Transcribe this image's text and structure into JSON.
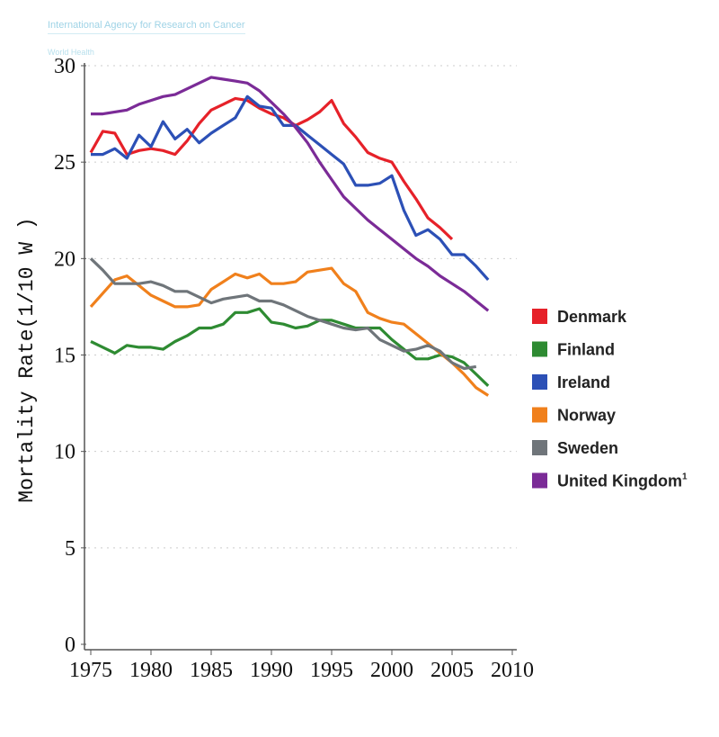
{
  "header": {
    "org": "International Agency for Research on Cancer",
    "sub": "World Health"
  },
  "chart_data": {
    "type": "line",
    "title": "",
    "xlabel": "",
    "ylabel": "Mortality Rate(1/10 W )",
    "xlim": [
      1975,
      2010
    ],
    "ylim": [
      0,
      30
    ],
    "xticks": [
      "1975",
      "1980",
      "1985",
      "1990",
      "1995",
      "2000",
      "2005",
      "2010"
    ],
    "yticks": [
      "0",
      "5",
      "10",
      "15",
      "20",
      "25",
      "30"
    ],
    "grid": "horizontal dotted",
    "legend_position": "right",
    "series": [
      {
        "name": "Denmark",
        "color": "#e62129",
        "start": 1975,
        "values": [
          25.5,
          26.6,
          26.5,
          25.4,
          25.6,
          25.7,
          25.6,
          25.4,
          26.1,
          27.0,
          27.7,
          28.0,
          28.3,
          28.2,
          27.8,
          27.5,
          27.3,
          26.9,
          27.2,
          27.6,
          28.2,
          27.0,
          26.3,
          25.5,
          25.2,
          25.0,
          24.0,
          23.1,
          22.1,
          21.6,
          21.0
        ]
      },
      {
        "name": "Finland",
        "color": "#2e8b32",
        "start": 1975,
        "values": [
          15.7,
          15.4,
          15.1,
          15.5,
          15.4,
          15.4,
          15.3,
          15.7,
          16.0,
          16.4,
          16.4,
          16.6,
          17.2,
          17.2,
          17.4,
          16.7,
          16.6,
          16.4,
          16.5,
          16.8,
          16.8,
          16.6,
          16.4,
          16.4,
          16.4,
          15.8,
          15.3,
          14.8,
          14.8,
          15.0,
          14.9,
          14.6,
          14.0,
          13.4
        ]
      },
      {
        "name": "Ireland",
        "color": "#2c50b6",
        "start": 1975,
        "values": [
          25.4,
          25.4,
          25.7,
          25.2,
          26.4,
          25.8,
          27.1,
          26.2,
          26.7,
          26.0,
          26.5,
          26.9,
          27.3,
          28.4,
          27.9,
          27.8,
          26.9,
          26.9,
          26.4,
          25.9,
          25.4,
          24.9,
          23.8,
          23.8,
          23.9,
          24.3,
          22.5,
          21.2,
          21.5,
          21.0,
          20.2,
          20.2,
          19.6,
          18.9
        ]
      },
      {
        "name": "Norway",
        "color": "#f0801c",
        "start": 1975,
        "values": [
          17.5,
          18.2,
          18.9,
          19.1,
          18.6,
          18.1,
          17.8,
          17.5,
          17.5,
          17.6,
          18.4,
          18.8,
          19.2,
          19.0,
          19.2,
          18.7,
          18.7,
          18.8,
          19.3,
          19.4,
          19.5,
          18.7,
          18.3,
          17.2,
          16.9,
          16.7,
          16.6,
          16.1,
          15.6,
          15.1,
          14.6,
          14.0,
          13.3,
          12.9
        ]
      },
      {
        "name": "Sweden",
        "color": "#6f757a",
        "start": 1975,
        "values": [
          20.0,
          19.4,
          18.7,
          18.7,
          18.7,
          18.8,
          18.6,
          18.3,
          18.3,
          18.0,
          17.7,
          17.9,
          18.0,
          18.1,
          17.8,
          17.8,
          17.6,
          17.3,
          17.0,
          16.8,
          16.6,
          16.4,
          16.3,
          16.4,
          15.8,
          15.5,
          15.2,
          15.3,
          15.5,
          15.2,
          14.6,
          14.3,
          14.4
        ]
      },
      {
        "name": "United Kingdom",
        "footnote": "1",
        "color": "#7b2b97",
        "start": 1975,
        "values": [
          27.5,
          27.5,
          27.6,
          27.7,
          28.0,
          28.2,
          28.4,
          28.5,
          28.8,
          29.1,
          29.4,
          29.3,
          29.2,
          29.1,
          28.7,
          28.1,
          27.5,
          26.8,
          26.0,
          25.0,
          24.1,
          23.2,
          22.6,
          22.0,
          21.5,
          21.0,
          20.5,
          20.0,
          19.6,
          19.1,
          18.7,
          18.3,
          17.8,
          17.3
        ]
      }
    ]
  }
}
